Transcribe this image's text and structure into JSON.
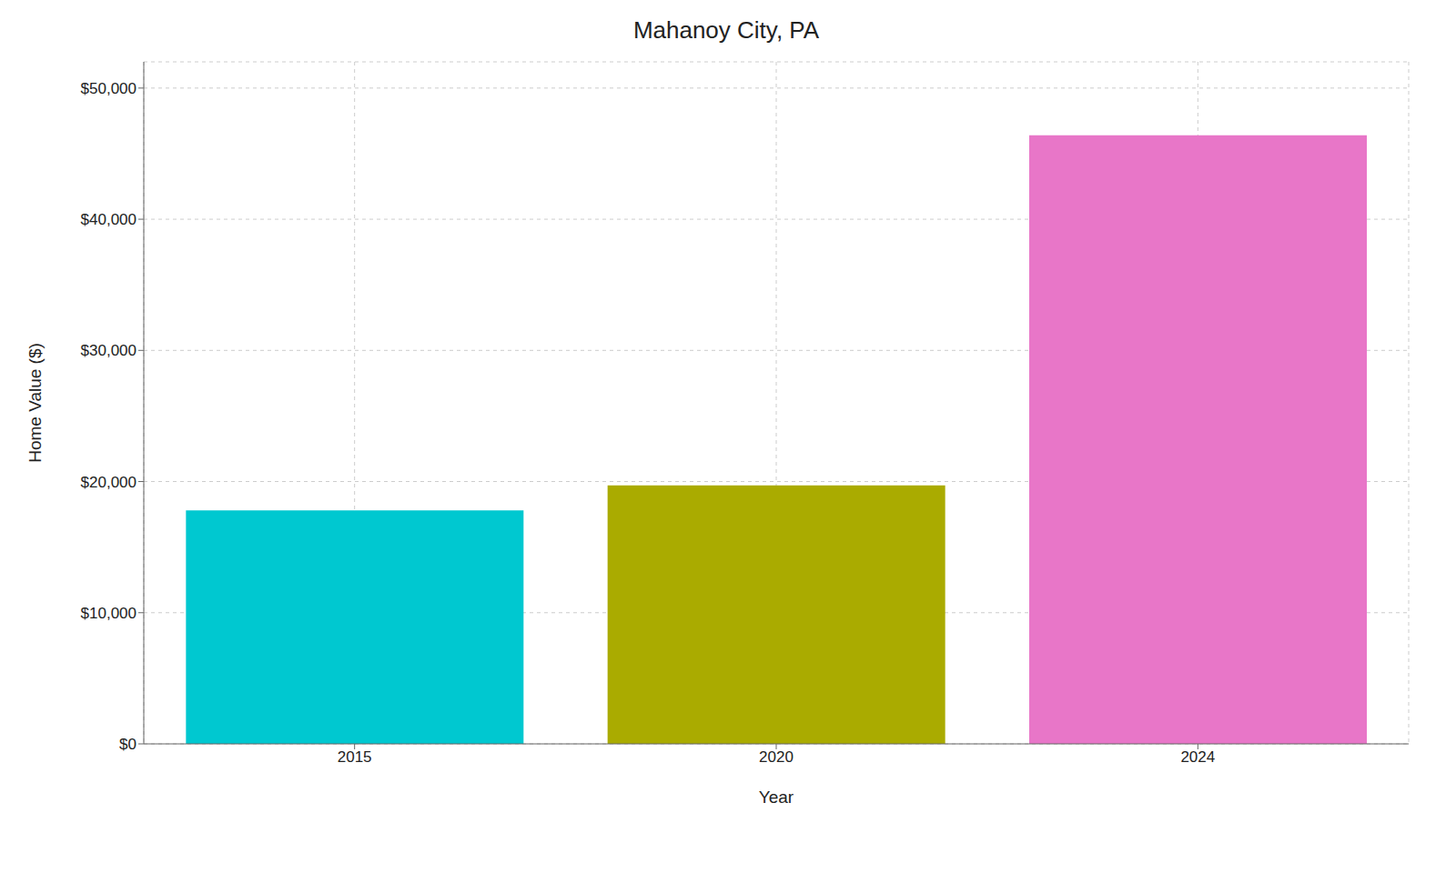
{
  "chart_data": {
    "type": "bar",
    "title": "Mahanoy City, PA",
    "categories": [
      "2015",
      "2020",
      "2024"
    ],
    "values": [
      17800,
      19700,
      46400
    ],
    "colors": [
      "#00C8D0",
      "#AAAB00",
      "#E876C8"
    ],
    "xlabel": "Year",
    "ylabel": "Home Value ($)",
    "ylim": [
      0,
      52000
    ],
    "yticks": [
      {
        "value": 0,
        "label": "$0"
      },
      {
        "value": 10000,
        "label": "$10,000"
      },
      {
        "value": 20000,
        "label": "$20,000"
      },
      {
        "value": 30000,
        "label": "$30,000"
      },
      {
        "value": 40000,
        "label": "$40,000"
      },
      {
        "value": 50000,
        "label": "$50,000"
      }
    ],
    "grid": true
  }
}
